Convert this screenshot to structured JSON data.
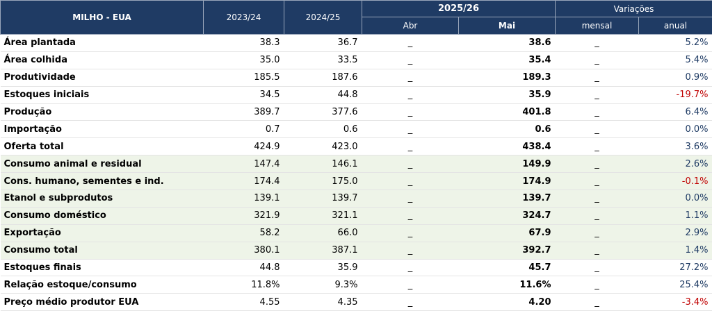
{
  "header": {
    "title": "MILHO - EUA",
    "col_2023": "2023/24",
    "col_2024": "2024/25",
    "group_2025": "2025/26",
    "col_abr": "Abr",
    "col_mai": "Mai",
    "group_var": "Variações",
    "col_mensal": "mensal",
    "col_anual": "anual"
  },
  "colors": {
    "header_bg": "#1f3b64",
    "shaded_row": "#eef4e8",
    "negative": "#c00000",
    "positive": "#1f3b64"
  },
  "rows": [
    {
      "label": "Área plantada",
      "y2023": "38.3",
      "y2024": "36.7",
      "abr": "_",
      "mai": "38.6",
      "mensal": "_",
      "anual": "5.2%",
      "neg": false,
      "shaded": false
    },
    {
      "label": "Área colhida",
      "y2023": "35.0",
      "y2024": "33.5",
      "abr": "_",
      "mai": "35.4",
      "mensal": "_",
      "anual": "5.4%",
      "neg": false,
      "shaded": false
    },
    {
      "label": "Produtividade",
      "y2023": "185.5",
      "y2024": "187.6",
      "abr": "_",
      "mai": "189.3",
      "mensal": "_",
      "anual": "0.9%",
      "neg": false,
      "shaded": false
    },
    {
      "label": "Estoques iniciais",
      "y2023": "34.5",
      "y2024": "44.8",
      "abr": "_",
      "mai": "35.9",
      "mensal": "_",
      "anual": "-19.7%",
      "neg": true,
      "shaded": false
    },
    {
      "label": "Produção",
      "y2023": "389.7",
      "y2024": "377.6",
      "abr": "_",
      "mai": "401.8",
      "mensal": "_",
      "anual": "6.4%",
      "neg": false,
      "shaded": false
    },
    {
      "label": "Importação",
      "y2023": "0.7",
      "y2024": "0.6",
      "abr": "_",
      "mai": "0.6",
      "mensal": "_",
      "anual": "0.0%",
      "neg": false,
      "shaded": false
    },
    {
      "label": "Oferta total",
      "y2023": "424.9",
      "y2024": "423.0",
      "abr": "_",
      "mai": "438.4",
      "mensal": "_",
      "anual": "3.6%",
      "neg": false,
      "shaded": false
    },
    {
      "label": "Consumo animal e residual",
      "y2023": "147.4",
      "y2024": "146.1",
      "abr": "_",
      "mai": "149.9",
      "mensal": "_",
      "anual": "2.6%",
      "neg": false,
      "shaded": true
    },
    {
      "label": "Cons. humano, sementes e ind.",
      "y2023": "174.4",
      "y2024": "175.0",
      "abr": "_",
      "mai": "174.9",
      "mensal": "_",
      "anual": "-0.1%",
      "neg": true,
      "shaded": true
    },
    {
      "label": "Etanol e subprodutos",
      "y2023": "139.1",
      "y2024": "139.7",
      "abr": "_",
      "mai": "139.7",
      "mensal": "_",
      "anual": "0.0%",
      "neg": false,
      "shaded": true
    },
    {
      "label": "Consumo doméstico",
      "y2023": "321.9",
      "y2024": "321.1",
      "abr": "_",
      "mai": "324.7",
      "mensal": "_",
      "anual": "1.1%",
      "neg": false,
      "shaded": true
    },
    {
      "label": "Exportação",
      "y2023": "58.2",
      "y2024": "66.0",
      "abr": "_",
      "mai": "67.9",
      "mensal": "_",
      "anual": "2.9%",
      "neg": false,
      "shaded": true
    },
    {
      "label": "Consumo total",
      "y2023": "380.1",
      "y2024": "387.1",
      "abr": "_",
      "mai": "392.7",
      "mensal": "_",
      "anual": "1.4%",
      "neg": false,
      "shaded": true
    },
    {
      "label": "Estoques finais",
      "y2023": "44.8",
      "y2024": "35.9",
      "abr": "_",
      "mai": "45.7",
      "mensal": "_",
      "anual": "27.2%",
      "neg": false,
      "shaded": false
    },
    {
      "label": "Relação estoque/consumo",
      "y2023": "11.8%",
      "y2024": "9.3%",
      "abr": "_",
      "mai": "11.6%",
      "mensal": "_",
      "anual": "25.4%",
      "neg": false,
      "shaded": false
    },
    {
      "label": "Preço médio produtor EUA",
      "y2023": "4.55",
      "y2024": "4.35",
      "abr": "_",
      "mai": "4.20",
      "mensal": "_",
      "anual": "-3.4%",
      "neg": true,
      "shaded": false
    }
  ]
}
